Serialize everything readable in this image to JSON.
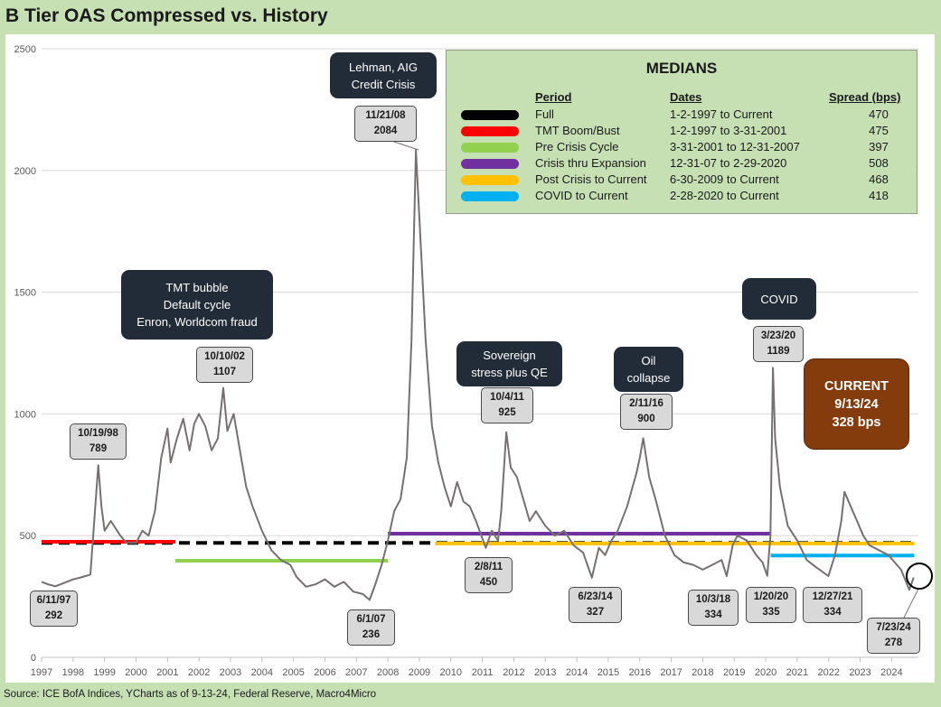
{
  "title": "B Tier OAS Compressed vs. History",
  "source": "Source: ICE BofA Indices, YCharts as of 9-13-24, Federal Reserve, Macro4Micro",
  "chart_data": {
    "type": "line",
    "title": "B Tier OAS Compressed vs. History",
    "ylim": [
      0,
      2500
    ],
    "y_ticks": [
      0,
      500,
      1000,
      1500,
      2000,
      2500
    ],
    "xlim": [
      1997.0,
      2024.85
    ],
    "x_ticks": [
      "1997",
      "1998",
      "1999",
      "2000",
      "2001",
      "2002",
      "2003",
      "2004",
      "2005",
      "2006",
      "2007",
      "2008",
      "2009",
      "2010",
      "2011",
      "2012",
      "2013",
      "2014",
      "2015",
      "2016",
      "2017",
      "2018",
      "2019",
      "2020",
      "2021",
      "2022",
      "2023",
      "2024"
    ],
    "grid": true,
    "series": [
      {
        "color": "#767171",
        "x": [
          1997.0,
          1997.2,
          1997.44,
          1997.7,
          1998.0,
          1998.3,
          1998.55,
          1998.8,
          1998.9,
          1999.0,
          1999.2,
          1999.5,
          1999.7,
          2000.0,
          2000.2,
          2000.4,
          2000.6,
          2000.8,
          2001.0,
          2001.1,
          2001.3,
          2001.5,
          2001.7,
          2001.85,
          2002.0,
          2002.2,
          2002.4,
          2002.6,
          2002.77,
          2002.9,
          2003.1,
          2003.3,
          2003.5,
          2003.7,
          2004.0,
          2004.3,
          2004.6,
          2004.9,
          2005.1,
          2005.4,
          2005.7,
          2006.0,
          2006.3,
          2006.6,
          2006.9,
          2007.2,
          2007.42,
          2007.6,
          2007.8,
          2008.0,
          2008.2,
          2008.4,
          2008.6,
          2008.75,
          2008.89,
          2009.0,
          2009.2,
          2009.4,
          2009.6,
          2009.8,
          2010.0,
          2010.2,
          2010.4,
          2010.6,
          2010.8,
          2011.11,
          2011.3,
          2011.5,
          2011.6,
          2011.76,
          2011.9,
          2012.1,
          2012.3,
          2012.5,
          2012.7,
          2013.0,
          2013.3,
          2013.6,
          2013.9,
          2014.2,
          2014.48,
          2014.7,
          2014.9,
          2015.1,
          2015.3,
          2015.6,
          2015.9,
          2016.0,
          2016.11,
          2016.3,
          2016.5,
          2016.8,
          2017.1,
          2017.4,
          2017.7,
          2018.0,
          2018.3,
          2018.6,
          2018.76,
          2018.95,
          2019.1,
          2019.4,
          2019.7,
          2019.9,
          2020.05,
          2020.15,
          2020.23,
          2020.3,
          2020.45,
          2020.7,
          2021.0,
          2021.3,
          2021.6,
          2021.99,
          2022.2,
          2022.4,
          2022.5,
          2022.7,
          2022.9,
          2023.1,
          2023.3,
          2023.6,
          2023.9,
          2024.1,
          2024.3,
          2024.56,
          2024.7
        ],
        "y": [
          310,
          300,
          292,
          305,
          320,
          330,
          340,
          789,
          620,
          520,
          560,
          500,
          470,
          470,
          520,
          500,
          600,
          820,
          940,
          800,
          900,
          980,
          850,
          960,
          1000,
          950,
          850,
          900,
          1107,
          930,
          1000,
          850,
          700,
          620,
          520,
          440,
          400,
          380,
          330,
          290,
          300,
          320,
          290,
          310,
          270,
          260,
          236,
          300,
          380,
          480,
          600,
          650,
          820,
          1300,
          2084,
          1800,
          1300,
          950,
          800,
          700,
          620,
          720,
          640,
          620,
          560,
          450,
          520,
          480,
          600,
          925,
          780,
          740,
          650,
          560,
          600,
          540,
          500,
          520,
          460,
          430,
          327,
          450,
          420,
          480,
          520,
          620,
          760,
          820,
          900,
          740,
          650,
          500,
          420,
          390,
          380,
          360,
          380,
          400,
          334,
          460,
          500,
          480,
          420,
          390,
          335,
          500,
          1189,
          900,
          700,
          540,
          480,
          400,
          370,
          334,
          420,
          560,
          680,
          620,
          560,
          500,
          460,
          440,
          420,
          390,
          360,
          278,
          328
        ]
      }
    ],
    "medians": {
      "title": "MEDIANS",
      "headers": [
        "Period",
        "Dates",
        "Spread (bps)"
      ],
      "rows": [
        {
          "period": "Full",
          "dates": "1-2-1997 to Current",
          "spread": "470",
          "color": "#000000",
          "style": "dashed",
          "x0": 1997.0,
          "x1": 2024.72,
          "y": 470
        },
        {
          "period": "TMT Boom/Bust",
          "dates": "1-2-1997 to 3-31-2001",
          "spread": "475",
          "color": "#ff0000",
          "style": "solid",
          "x0": 1997.0,
          "x1": 2001.25,
          "y": 475
        },
        {
          "period": "Pre Crisis Cycle",
          "dates": "3-31-2001  to 12-31-2007",
          "spread": "397",
          "color": "#92d050",
          "style": "solid",
          "x0": 2001.25,
          "x1": 2008.0,
          "y": 397
        },
        {
          "period": "Crisis thru Expansion",
          "dates": "12-31-07 to 2-29-2020",
          "spread": "508",
          "color": "#7030a0",
          "style": "solid",
          "x0": 2008.0,
          "x1": 2020.16,
          "y": 508
        },
        {
          "period": "Post Crisis to Current",
          "dates": "6-30-2009  to Current",
          "spread": "468",
          "color": "#ffc000",
          "style": "solid",
          "x0": 2009.5,
          "x1": 2024.72,
          "y": 468
        },
        {
          "period": "COVID to Current",
          "dates": "2-28-2020  to Current",
          "spread": "418",
          "color": "#00b0f0",
          "style": "solid",
          "x0": 2020.16,
          "x1": 2024.72,
          "y": 418
        }
      ]
    },
    "callouts": [
      {
        "lines": [
          "TMT bubble",
          "Default cycle",
          "Enron, Worldcom fraud"
        ]
      },
      {
        "lines": [
          "Lehman, AIG",
          "Credit Crisis"
        ]
      },
      {
        "lines": [
          "Sovereign",
          "stress plus QE"
        ]
      },
      {
        "lines": [
          "Oil",
          "collapse"
        ]
      },
      {
        "lines": [
          "COVID"
        ]
      }
    ],
    "point_labels": [
      {
        "date": "6/11/97",
        "value": "292"
      },
      {
        "date": "10/19/98",
        "value": "789"
      },
      {
        "date": "10/10/02",
        "value": "1107"
      },
      {
        "date": "6/1/07",
        "value": "236"
      },
      {
        "date": "11/21/08",
        "value": "2084"
      },
      {
        "date": "2/8/11",
        "value": "450"
      },
      {
        "date": "10/4/11",
        "value": "925"
      },
      {
        "date": "6/23/14",
        "value": "327"
      },
      {
        "date": "2/11/16",
        "value": "900"
      },
      {
        "date": "10/3/18",
        "value": "334"
      },
      {
        "date": "1/20/20",
        "value": "335"
      },
      {
        "date": "3/23/20",
        "value": "1189"
      },
      {
        "date": "12/27/21",
        "value": "334"
      },
      {
        "date": "7/23/24",
        "value": "278"
      }
    ],
    "current": {
      "lines": [
        "CURRENT",
        "9/13/24",
        "328 bps"
      ]
    }
  }
}
